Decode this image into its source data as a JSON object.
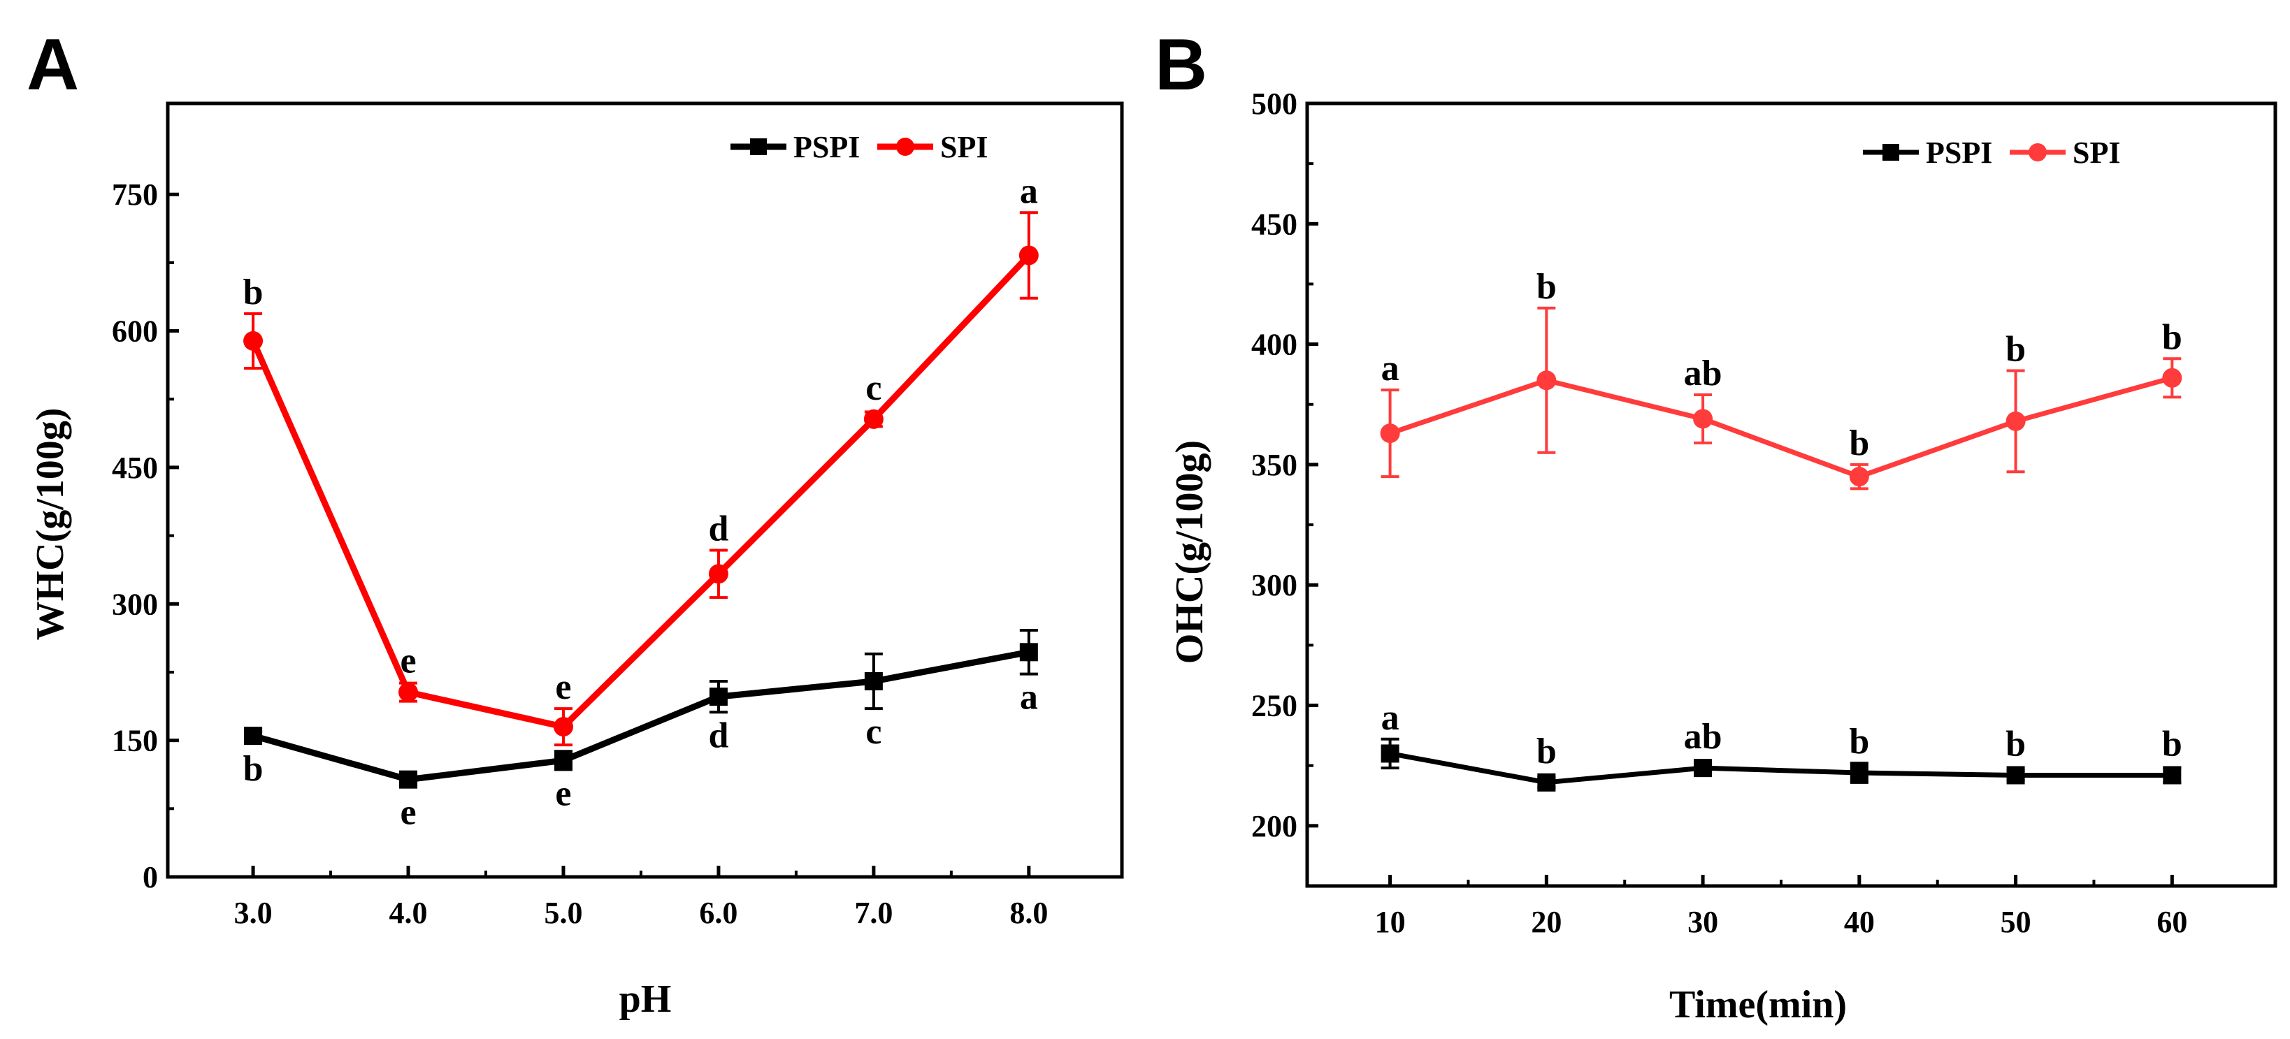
{
  "colors": {
    "PSPI": "#000000",
    "SPI": "#ff0000",
    "SPI_B": "#ff3b3b"
  },
  "chart_data": [
    {
      "panel": "A",
      "type": "line",
      "xlabel": "pH",
      "ylabel": "WHC(g/100g)",
      "x": [
        3.0,
        4.0,
        5.0,
        6.0,
        7.0,
        8.0
      ],
      "x_tick_labels": [
        "3.0",
        "4.0",
        "5.0",
        "6.0",
        "7.0",
        "8.0"
      ],
      "xlim": [
        2.45,
        8.6
      ],
      "ylim": [
        0,
        850
      ],
      "y_ticks": [
        0,
        150,
        300,
        450,
        600,
        750
      ],
      "y_tick_labels": [
        "0",
        "150",
        "300",
        "450",
        "600",
        "750"
      ],
      "legend": [
        "PSPI",
        "SPI"
      ],
      "legend_position": "top-right",
      "series": [
        {
          "name": "PSPI",
          "marker": "square",
          "values": [
            155,
            107,
            128,
            198,
            215,
            247
          ],
          "errors": [
            5,
            5,
            10,
            17,
            30,
            24
          ],
          "letters": [
            "b",
            "e",
            "e",
            "d",
            "c",
            "a"
          ],
          "letter_position": "below"
        },
        {
          "name": "SPI",
          "marker": "circle",
          "values": [
            589,
            203,
            165,
            333,
            503,
            683
          ],
          "errors": [
            30,
            10,
            20,
            26,
            8,
            47
          ],
          "letters": [
            "b",
            "e",
            "e",
            "d",
            "c",
            "a"
          ],
          "letter_position": "above"
        }
      ]
    },
    {
      "panel": "B",
      "type": "line",
      "xlabel": "Time(min)",
      "ylabel": "OHC(g/100g)",
      "x": [
        10,
        20,
        30,
        40,
        50,
        60
      ],
      "x_tick_labels": [
        "10",
        "20",
        "30",
        "40",
        "50",
        "60"
      ],
      "xlim": [
        4.7,
        66.6
      ],
      "ylim": [
        175,
        500
      ],
      "y_ticks": [
        200,
        250,
        300,
        350,
        400,
        450,
        500
      ],
      "y_tick_labels": [
        "200",
        "250",
        "300",
        "350",
        "400",
        "450",
        "500"
      ],
      "legend": [
        "PSPI",
        "SPI"
      ],
      "legend_position": "top-right",
      "series": [
        {
          "name": "PSPI",
          "marker": "square",
          "values": [
            230,
            218,
            224,
            222,
            221,
            221
          ],
          "errors": [
            6,
            2,
            2,
            4,
            2,
            3
          ],
          "letters": [
            "a",
            "b",
            "ab",
            "b",
            "b",
            "b"
          ],
          "letter_position": "above"
        },
        {
          "name": "SPI",
          "marker": "circle",
          "values": [
            363,
            385,
            369,
            345,
            368,
            386
          ],
          "errors": [
            18,
            30,
            10,
            5,
            21,
            8
          ],
          "letters": [
            "a",
            "b",
            "ab",
            "b",
            "b",
            "b"
          ],
          "letter_position": "above"
        }
      ]
    }
  ]
}
